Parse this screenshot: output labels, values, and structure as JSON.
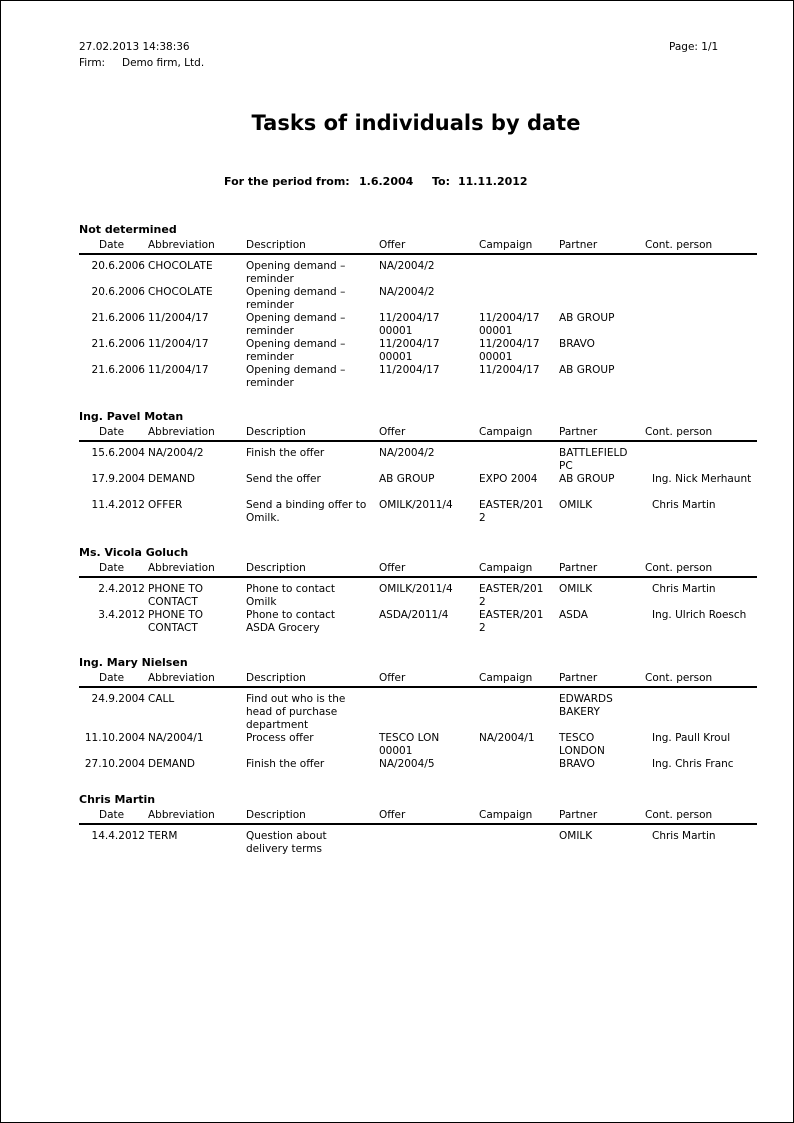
{
  "header": {
    "datetime": "27.02.2013  14:38:36",
    "page": "Page: 1/1",
    "firm_label": "Firm:",
    "firm": "Demo firm, Ltd."
  },
  "title": "Tasks of individuals by date",
  "period": {
    "from_label": "For the period from:",
    "from": "1.6.2004",
    "to_label": "To:",
    "to": "11.11.2012"
  },
  "columns": [
    "Date",
    "Abbreviation",
    "Description",
    "Offer",
    "Campaign",
    "Partner",
    "Cont. person"
  ],
  "sections": [
    {
      "name": "Not determined",
      "rows": [
        {
          "date": "20.6.2006",
          "abbr": "CHOCOLATE",
          "desc": "Opening demand –\nreminder",
          "offer": "NA/2004/2",
          "camp": "",
          "partner": "",
          "contact": ""
        },
        {
          "date": "20.6.2006",
          "abbr": "CHOCOLATE",
          "desc": "Opening demand –\nreminder",
          "offer": "NA/2004/2",
          "camp": "",
          "partner": "",
          "contact": ""
        },
        {
          "date": "21.6.2006",
          "abbr": "11/2004/17",
          "desc": "Opening demand –\nreminder",
          "offer": "11/2004/17 00001",
          "camp": "11/2004/17 00001",
          "partner": "AB GROUP",
          "contact": ""
        },
        {
          "date": "21.6.2006",
          "abbr": "11/2004/17",
          "desc": "Opening demand –\nreminder",
          "offer": "11/2004/17 00001",
          "camp": "11/2004/17 00001",
          "partner": "BRAVO",
          "contact": ""
        },
        {
          "date": "21.6.2006",
          "abbr": "11/2004/17",
          "desc": "Opening demand –\nreminder",
          "offer": "11/2004/17",
          "camp": "11/2004/17",
          "partner": "AB GROUP",
          "contact": ""
        }
      ]
    },
    {
      "name": "Ing. Pavel Motan",
      "rows": [
        {
          "date": "15.6.2004",
          "abbr": "NA/2004/2",
          "desc": "Finish the offer",
          "offer": "NA/2004/2",
          "camp": "",
          "partner": "BATTLEFIELD PC",
          "contact": ""
        },
        {
          "date": "17.9.2004",
          "abbr": "DEMAND",
          "desc": "Send the offer",
          "offer": "AB GROUP",
          "camp": "EXPO 2004",
          "partner": "AB GROUP",
          "contact": "Ing. Nick Merhaunt"
        },
        {
          "date": "11.4.2012",
          "abbr": "OFFER",
          "desc": "Send a binding offer to\nOmilk.",
          "offer": "OMILK/2011/4",
          "camp": "EASTER/2012",
          "partner": "OMILK",
          "contact": "Chris Martin"
        }
      ]
    },
    {
      "name": "Ms. Vicola Goluch",
      "rows": [
        {
          "date": "2.4.2012",
          "abbr": "PHONE TO CONTACT",
          "desc": "Phone to contact\nOmilk",
          "offer": "OMILK/2011/4",
          "camp": "EASTER/2012",
          "partner": "OMILK",
          "contact": "Chris Martin"
        },
        {
          "date": "3.4.2012",
          "abbr": "PHONE TO CONTACT",
          "desc": "Phone to contact\nASDA Grocery",
          "offer": "ASDA/2011/4",
          "camp": "EASTER/2012",
          "partner": "ASDA",
          "contact": "Ing. Ulrich Roesch"
        }
      ]
    },
    {
      "name": "Ing. Mary Nielsen",
      "rows": [
        {
          "date": "24.9.2004",
          "abbr": "CALL",
          "desc": "Find out who is the\nhead of purchase\ndepartment",
          "offer": "",
          "camp": "",
          "partner": "EDWARDS BAKERY",
          "contact": ""
        },
        {
          "date": "11.10.2004",
          "abbr": "NA/2004/1",
          "desc": "Process offer",
          "offer": "TESCO LON 00001",
          "camp": "NA/2004/1",
          "partner": "TESCO LONDON",
          "contact": "Ing. Paull Kroul"
        },
        {
          "date": "27.10.2004",
          "abbr": "DEMAND",
          "desc": "Finish the offer",
          "offer": "NA/2004/5",
          "camp": "",
          "partner": "BRAVO",
          "contact": "Ing. Chris Franc"
        }
      ]
    },
    {
      "name": "Chris Martin",
      "rows": [
        {
          "date": "14.4.2012",
          "abbr": "TERM",
          "desc": "Question about\ndelivery terms",
          "offer": "",
          "camp": "",
          "partner": "OMILK",
          "contact": "Chris Martin"
        }
      ]
    }
  ]
}
